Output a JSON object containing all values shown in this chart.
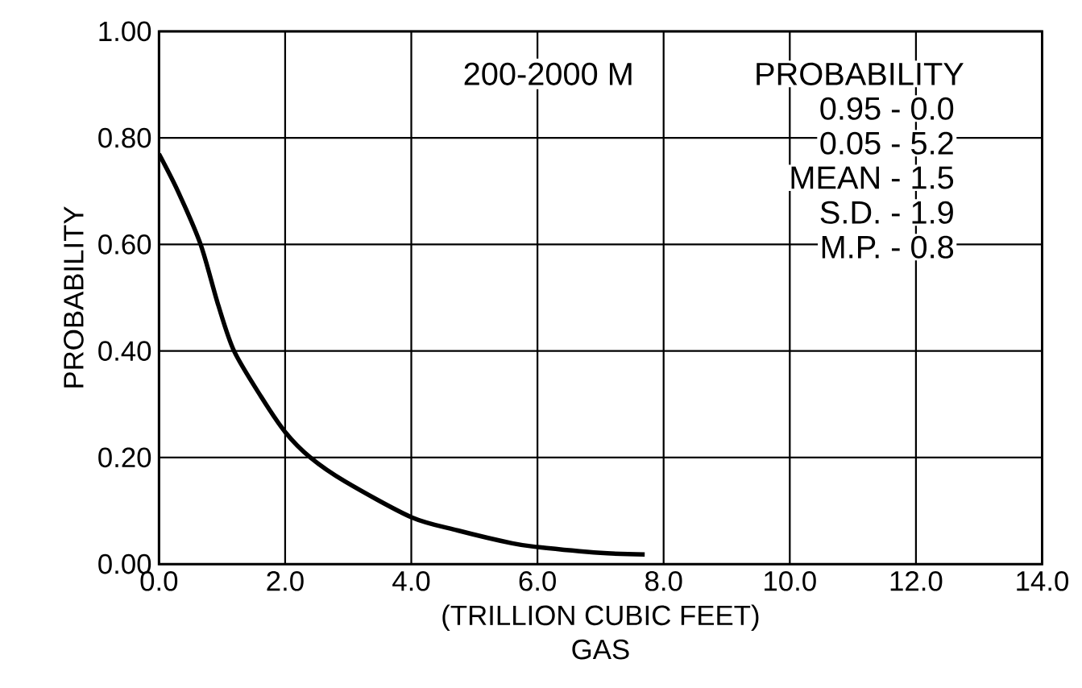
{
  "chart_data": {
    "type": "line",
    "xlabel": "(TRILLION CUBIC FEET)\nGAS",
    "ylabel": "PROBABILITY",
    "x": [
      0,
      0.3,
      0.66,
      0.94,
      1.19,
      1.62,
      2.0,
      2.4,
      2.95,
      4.0,
      4.74,
      5.6,
      6.0,
      7.0,
      7.7
    ],
    "series": [
      {
        "color": "#000000",
        "values": [
          0.77,
          0.7,
          0.6,
          0.486,
          0.4,
          0.314,
          0.248,
          0.2,
          0.155,
          0.088,
          0.063,
          0.039,
          0.032,
          0.021,
          0.018
        ]
      }
    ],
    "xlim": [
      0,
      14
    ],
    "ylim": [
      0,
      1
    ],
    "xticks": [
      {
        "value": 0,
        "label": "0.0"
      },
      {
        "value": 2,
        "label": "2.0"
      },
      {
        "value": 4,
        "label": "4.0"
      },
      {
        "value": 6,
        "label": "6.0"
      },
      {
        "value": 8,
        "label": "8.0"
      },
      {
        "value": 10,
        "label": "10.0"
      },
      {
        "value": 12,
        "label": "12.0"
      },
      {
        "value": 14,
        "label": "14.0"
      }
    ],
    "yticks": [
      {
        "value": 0,
        "label": "0.00"
      },
      {
        "value": 0.2,
        "label": "0.20"
      },
      {
        "value": 0.4,
        "label": "0.40"
      },
      {
        "value": 0.6,
        "label": "0.60"
      },
      {
        "value": 0.8,
        "label": "0.80"
      },
      {
        "value": 1,
        "label": "1.00"
      }
    ],
    "grid": true,
    "marker": "none",
    "line_style": "solid",
    "annotations": [
      "200-2000 M",
      "PROBABILITY",
      "0.95 - 0.0",
      "0.05 - 5.2",
      "MEAN - 1.5",
      "S.D. - 1.9",
      "M.P. - 0.8"
    ]
  }
}
